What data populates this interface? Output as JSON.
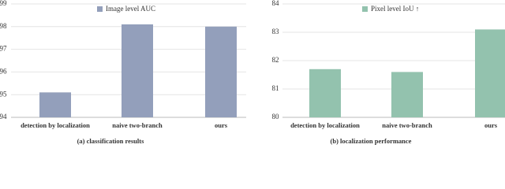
{
  "chart_data": [
    {
      "type": "bar",
      "caption": "(a) classification results",
      "categories": [
        "detection by localization",
        "naive two-branch",
        "ours"
      ],
      "series": [
        {
          "name": "Image level AUC",
          "color": "#939fbb",
          "values": [
            95.1,
            98.1,
            98.0
          ]
        }
      ],
      "ylim": [
        94,
        99
      ],
      "yticks": [
        94,
        95,
        96,
        97,
        98,
        99
      ],
      "grid": true
    },
    {
      "type": "bar",
      "caption": "(b) localization performance",
      "categories": [
        "detection by localization",
        "naive two-branch",
        "ours"
      ],
      "series": [
        {
          "name": "Pixel level IoU ↑",
          "color": "#93c2ae",
          "values": [
            81.7,
            81.6,
            83.1
          ]
        }
      ],
      "ylim": [
        80,
        84
      ],
      "yticks": [
        80,
        81,
        82,
        83,
        84
      ],
      "grid": true
    }
  ]
}
